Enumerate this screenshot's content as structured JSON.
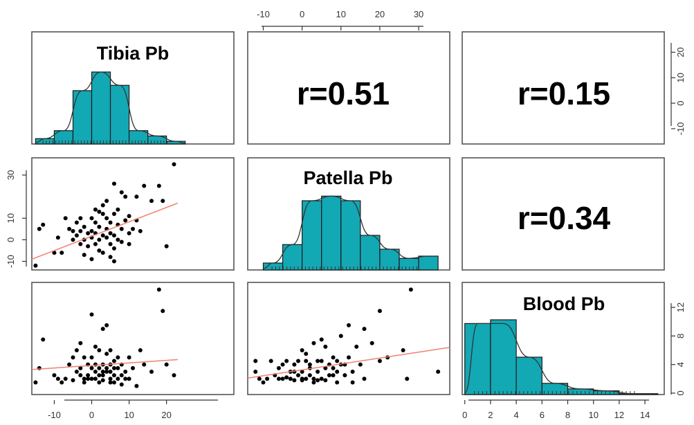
{
  "chart_data": {
    "type": "scatter-matrix",
    "colors": {
      "bar": "#12a8b4",
      "fit_line": "#f08070",
      "points": "#000000"
    },
    "variables": [
      {
        "key": "tibia",
        "label": "Tibia Pb",
        "axis_ticks": [
          -10,
          0,
          10,
          20
        ],
        "range": [
          -16,
          38
        ]
      },
      {
        "key": "patella",
        "label": "Patella Pb",
        "axis_ticks": [
          -10,
          0,
          10,
          20,
          30
        ],
        "range": [
          -14,
          38
        ]
      },
      {
        "key": "blood",
        "label": "Blood Pb",
        "axis_ticks": [
          0,
          2,
          4,
          6,
          8,
          10,
          12,
          14
        ],
        "range": [
          -0.2,
          15.5
        ]
      }
    ],
    "correlations": [
      {
        "pair": [
          "tibia",
          "patella"
        ],
        "label": "r=0.51"
      },
      {
        "pair": [
          "tibia",
          "blood"
        ],
        "label": "r=0.15"
      },
      {
        "pair": [
          "patella",
          "blood"
        ],
        "label": "r=0.34"
      }
    ],
    "histograms": {
      "tibia": {
        "edges": [
          -15,
          -10,
          -5,
          0,
          5,
          10,
          15,
          20,
          25
        ],
        "counts": [
          2,
          5,
          20,
          27,
          22,
          5,
          3,
          1
        ],
        "density_max_count": 27
      },
      "patella": {
        "edges": [
          -10,
          -5,
          0,
          5,
          10,
          15,
          20,
          25,
          30,
          35
        ],
        "counts": [
          3,
          11,
          30,
          32,
          30,
          15,
          9,
          5,
          6,
          2
        ],
        "density_max_count": 33
      },
      "blood": {
        "edges": [
          0,
          2,
          4,
          6,
          8,
          10,
          12,
          14,
          15
        ],
        "counts": [
          38,
          40,
          20,
          6,
          3,
          2,
          0.5,
          0.5
        ],
        "density_max_count": 38
      }
    },
    "pairs": {
      "tibia_patella": {
        "points": [
          [
            -15,
            -12
          ],
          [
            -14,
            5
          ],
          [
            -13,
            7
          ],
          [
            -10,
            -6
          ],
          [
            -8,
            -6
          ],
          [
            -7,
            10
          ],
          [
            -5,
            4
          ],
          [
            -5,
            0
          ],
          [
            -4,
            8
          ],
          [
            -4,
            2
          ],
          [
            -3,
            4
          ],
          [
            -3,
            -2
          ],
          [
            -2,
            0
          ],
          [
            -2,
            6
          ],
          [
            -1,
            3
          ],
          [
            -1,
            -3
          ],
          [
            0,
            4
          ],
          [
            0,
            10
          ],
          [
            0,
            1
          ],
          [
            1,
            8
          ],
          [
            1,
            -2
          ],
          [
            1,
            3
          ],
          [
            2,
            6
          ],
          [
            2,
            -5
          ],
          [
            2,
            0
          ],
          [
            3,
            16
          ],
          [
            3,
            12
          ],
          [
            3,
            2
          ],
          [
            3,
            -6
          ],
          [
            4,
            10
          ],
          [
            4,
            5
          ],
          [
            4,
            1
          ],
          [
            5,
            8
          ],
          [
            5,
            -2
          ],
          [
            5,
            3
          ],
          [
            6,
            26
          ],
          [
            6,
            12
          ],
          [
            6,
            -4
          ],
          [
            6,
            2
          ],
          [
            6,
            -10
          ],
          [
            7,
            7
          ],
          [
            7,
            0
          ],
          [
            7,
            14
          ],
          [
            8,
            22
          ],
          [
            8,
            5
          ],
          [
            9,
            9
          ],
          [
            9,
            20
          ],
          [
            10,
            11
          ],
          [
            10,
            -2
          ],
          [
            10,
            3
          ],
          [
            11,
            5
          ],
          [
            12,
            20
          ],
          [
            12,
            9
          ],
          [
            13,
            4
          ],
          [
            14,
            25
          ],
          [
            16,
            18
          ],
          [
            18,
            25
          ],
          [
            19,
            18
          ],
          [
            20,
            -3
          ],
          [
            22,
            35
          ],
          [
            -6,
            5
          ],
          [
            -9,
            1
          ],
          [
            -2,
            -7
          ],
          [
            1,
            14
          ],
          [
            5,
            -8
          ],
          [
            -3,
            10
          ],
          [
            0,
            -9
          ],
          [
            4,
            18
          ],
          [
            8,
            -1
          ],
          [
            2,
            13
          ]
        ],
        "fit": [
          [
            -16,
            -9
          ],
          [
            23,
            17
          ]
        ]
      },
      "tibia_blood": {
        "points": [
          [
            -15,
            1.5
          ],
          [
            -14,
            3.5
          ],
          [
            -13,
            7.5
          ],
          [
            -10,
            2.5
          ],
          [
            -8,
            1.5
          ],
          [
            -7,
            2
          ],
          [
            -5,
            5
          ],
          [
            -5,
            1.8
          ],
          [
            -4,
            6
          ],
          [
            -4,
            3
          ],
          [
            -3,
            7
          ],
          [
            -3,
            2.5
          ],
          [
            -2,
            2
          ],
          [
            -2,
            1.5
          ],
          [
            -1,
            2.5
          ],
          [
            -1,
            4
          ],
          [
            0,
            11
          ],
          [
            0,
            5
          ],
          [
            0,
            2
          ],
          [
            1,
            3
          ],
          [
            1,
            2
          ],
          [
            1,
            4
          ],
          [
            2,
            3.5
          ],
          [
            2,
            1.5
          ],
          [
            2,
            6
          ],
          [
            3,
            9
          ],
          [
            3,
            2.5
          ],
          [
            3,
            4
          ],
          [
            3,
            1.8
          ],
          [
            4,
            9.5
          ],
          [
            4,
            5.5
          ],
          [
            4,
            3
          ],
          [
            5,
            2
          ],
          [
            5,
            4
          ],
          [
            5,
            6
          ],
          [
            5,
            1.5
          ],
          [
            6,
            4.5
          ],
          [
            6,
            2.5
          ],
          [
            6,
            1.5
          ],
          [
            7,
            3.5
          ],
          [
            7,
            2
          ],
          [
            8,
            4
          ],
          [
            8,
            1.2
          ],
          [
            9,
            3
          ],
          [
            9,
            2
          ],
          [
            10,
            5
          ],
          [
            10,
            2
          ],
          [
            11,
            3.5
          ],
          [
            12,
            1
          ],
          [
            13,
            6
          ],
          [
            14,
            4
          ],
          [
            16,
            3
          ],
          [
            18,
            14.5
          ],
          [
            19,
            11.5
          ],
          [
            20,
            4
          ],
          [
            22,
            2.5
          ],
          [
            -6,
            4
          ],
          [
            -9,
            2
          ],
          [
            -2,
            5
          ],
          [
            1,
            6.5
          ],
          [
            4,
            3.5
          ],
          [
            0,
            3.5
          ],
          [
            -3,
            3.5
          ],
          [
            2,
            2.5
          ],
          [
            6,
            3.5
          ],
          [
            7,
            5
          ],
          [
            3,
            3
          ],
          [
            -1,
            2
          ],
          [
            5,
            3
          ],
          [
            8,
            2.5
          ]
        ],
        "fit": [
          [
            -16,
            3.3
          ],
          [
            23,
            4.7
          ]
        ]
      },
      "patella_blood": {
        "points": [
          [
            -12,
            3
          ],
          [
            -12,
            4.5
          ],
          [
            -10,
            1.5
          ],
          [
            -9,
            2
          ],
          [
            -8,
            4.5
          ],
          [
            -7,
            2.5
          ],
          [
            -6,
            3.5
          ],
          [
            -5,
            2
          ],
          [
            -5,
            4
          ],
          [
            -4,
            4.5
          ],
          [
            -3,
            2
          ],
          [
            -3,
            3
          ],
          [
            -2,
            1.8
          ],
          [
            -2,
            4
          ],
          [
            -1,
            2.5
          ],
          [
            -1,
            4.5
          ],
          [
            0,
            2
          ],
          [
            0,
            6
          ],
          [
            0,
            3
          ],
          [
            1,
            4.5
          ],
          [
            1,
            2
          ],
          [
            2,
            2.5
          ],
          [
            2,
            4
          ],
          [
            3,
            1.5
          ],
          [
            3,
            7
          ],
          [
            4,
            3
          ],
          [
            4,
            4.5
          ],
          [
            5,
            2
          ],
          [
            5,
            7.5
          ],
          [
            6,
            3.5
          ],
          [
            6,
            1.8
          ],
          [
            7,
            4
          ],
          [
            8,
            2.5
          ],
          [
            8,
            5
          ],
          [
            9,
            3
          ],
          [
            9,
            1.5
          ],
          [
            10,
            4
          ],
          [
            10,
            8
          ],
          [
            11,
            2.5
          ],
          [
            12,
            9.5
          ],
          [
            12,
            5
          ],
          [
            13,
            3
          ],
          [
            14,
            6.5
          ],
          [
            15,
            4
          ],
          [
            16,
            2
          ],
          [
            16,
            9
          ],
          [
            18,
            7
          ],
          [
            20,
            4.5
          ],
          [
            20,
            11.5
          ],
          [
            22,
            5
          ],
          [
            26,
            6
          ],
          [
            27,
            2
          ],
          [
            28,
            14.5
          ],
          [
            35,
            3
          ],
          [
            -11,
            2
          ],
          [
            -6,
            2
          ],
          [
            1,
            5.5
          ],
          [
            3,
            2
          ],
          [
            4,
            1.8
          ],
          [
            -4,
            2.2
          ],
          [
            0,
            1.8
          ],
          [
            2,
            3.5
          ],
          [
            5,
            4.5
          ],
          [
            7,
            2.5
          ],
          [
            9,
            4.5
          ],
          [
            6,
            6.5
          ],
          [
            11,
            4
          ],
          [
            13,
            1.5
          ],
          [
            -2,
            3
          ],
          [
            8,
            3.5
          ]
        ],
        "fit": [
          [
            -14,
            2.1
          ],
          [
            38,
            6.4
          ]
        ]
      }
    }
  }
}
